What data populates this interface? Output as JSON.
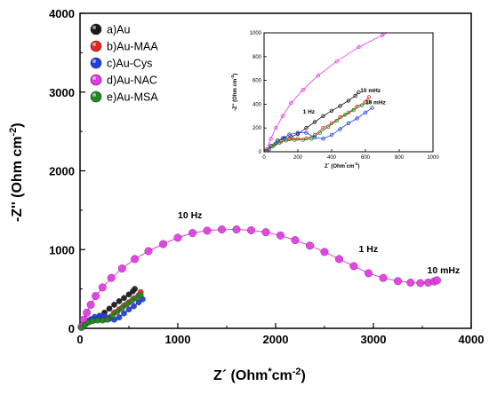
{
  "chart_data": [
    {
      "type": "scatter",
      "name": "main",
      "xlabel": "Z´ (Ohm*cm-2)",
      "ylabel": "-Z'' (Ohm cm-2)",
      "xlim": [
        0,
        4000
      ],
      "ylim": [
        0,
        4000
      ],
      "x_ticks": [
        "0",
        "1000",
        "2000",
        "3000",
        "4000"
      ],
      "y_ticks": [
        "0",
        "1000",
        "2000",
        "3000",
        "4000"
      ],
      "legend_position": "top-left",
      "series": [
        {
          "name": "a)Au",
          "color": "#1a1a1a",
          "points": [
            [
              12,
              8
            ],
            [
              40,
              50
            ],
            [
              80,
              95
            ],
            [
              120,
              115
            ],
            [
              160,
              125
            ],
            [
              200,
              150
            ],
            [
              250,
              200
            ],
            [
              300,
              250
            ],
            [
              350,
              300
            ],
            [
              400,
              345
            ],
            [
              450,
              385
            ],
            [
              500,
              430
            ],
            [
              540,
              470
            ],
            [
              560,
              500
            ]
          ]
        },
        {
          "name": "b)Au-MAA",
          "color": "#e8271e",
          "points": [
            [
              20,
              10
            ],
            [
              60,
              55
            ],
            [
              100,
              85
            ],
            [
              150,
              105
            ],
            [
              200,
              110
            ],
            [
              250,
              112
            ],
            [
              300,
              140
            ],
            [
              350,
              200
            ],
            [
              400,
              240
            ],
            [
              450,
              290
            ],
            [
              500,
              330
            ],
            [
              550,
              380
            ],
            [
              600,
              420
            ],
            [
              620,
              460
            ]
          ]
        },
        {
          "name": "c)Au-Cys",
          "color": "#1f3fe0",
          "points": [
            [
              30,
              20
            ],
            [
              70,
              70
            ],
            [
              110,
              115
            ],
            [
              150,
              145
            ],
            [
              200,
              160
            ],
            [
              250,
              160
            ],
            [
              300,
              120
            ],
            [
              350,
              110
            ],
            [
              400,
              140
            ],
            [
              450,
              190
            ],
            [
              500,
              240
            ],
            [
              550,
              280
            ],
            [
              600,
              330
            ],
            [
              640,
              370
            ]
          ]
        },
        {
          "name": "d)Au-NAC",
          "color": "#e836e8",
          "points": [
            [
              15,
              20
            ],
            [
              40,
              110
            ],
            [
              70,
              200
            ],
            [
              110,
              300
            ],
            [
              160,
              410
            ],
            [
              230,
              520
            ],
            [
              320,
              640
            ],
            [
              430,
              760
            ],
            [
              560,
              880
            ],
            [
              700,
              980
            ],
            [
              850,
              1070
            ],
            [
              1000,
              1150
            ],
            [
              1150,
              1210
            ],
            [
              1300,
              1240
            ],
            [
              1450,
              1255
            ],
            [
              1600,
              1255
            ],
            [
              1750,
              1245
            ],
            [
              1900,
              1220
            ],
            [
              2050,
              1180
            ],
            [
              2200,
              1120
            ],
            [
              2350,
              1050
            ],
            [
              2500,
              970
            ],
            [
              2650,
              880
            ],
            [
              2800,
              790
            ],
            [
              2950,
              700
            ],
            [
              3100,
              640
            ],
            [
              3250,
              600
            ],
            [
              3380,
              580
            ],
            [
              3480,
              575
            ],
            [
              3560,
              580
            ],
            [
              3620,
              595
            ],
            [
              3650,
              610
            ]
          ]
        },
        {
          "name": "e)Au-MSA",
          "color": "#1e8a1e",
          "points": [
            [
              15,
              8
            ],
            [
              50,
              45
            ],
            [
              90,
              75
            ],
            [
              130,
              95
            ],
            [
              180,
              100
            ],
            [
              230,
              100
            ],
            [
              280,
              110
            ],
            [
              330,
              160
            ],
            [
              380,
              210
            ],
            [
              430,
              260
            ],
            [
              480,
              310
            ],
            [
              530,
              350
            ],
            [
              580,
              390
            ],
            [
              620,
              420
            ]
          ]
        }
      ],
      "annotations": [
        {
          "text": "10 Hz",
          "x": 1000,
          "y": 1400
        },
        {
          "text": "1 Hz",
          "x": 2850,
          "y": 970
        },
        {
          "text": "10 mHz",
          "x": 3550,
          "y": 700
        }
      ]
    },
    {
      "type": "scatter",
      "name": "inset",
      "xlabel": "Z´ (Ohm*cm-2)",
      "ylabel": "-Z'' (Ohm cm-2)",
      "xlim": [
        0,
        1000
      ],
      "ylim": [
        0,
        1000
      ],
      "x_ticks": [
        "0",
        "200",
        "400",
        "600",
        "800",
        "1000"
      ],
      "y_ticks": [
        "0",
        "200",
        "400",
        "600",
        "800",
        "1000"
      ],
      "annotations": [
        {
          "text": "1 Hz",
          "x": 230,
          "y": 320
        },
        {
          "text": "10 mHz",
          "x": 570,
          "y": 500
        },
        {
          "text": "10 mHz",
          "x": 600,
          "y": 400
        }
      ]
    }
  ]
}
